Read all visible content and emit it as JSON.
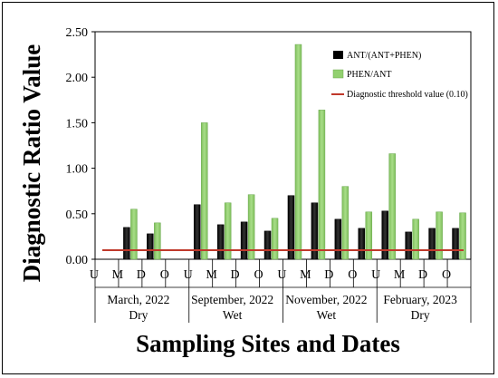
{
  "chart_data": {
    "type": "bar",
    "xlabel": "Sampling Sites and Dates",
    "ylabel": "Diagnostic Ratio Value",
    "ylim": [
      0,
      2.5
    ],
    "yticks": [
      "0.00",
      "0.50",
      "1.00",
      "1.50",
      "2.00",
      "2.50"
    ],
    "grid": false,
    "legend_position": "top-right",
    "categories": [
      "U",
      "M",
      "D",
      "O",
      "U",
      "M",
      "D",
      "O",
      "U",
      "M",
      "D",
      "O",
      "U",
      "M",
      "D",
      "O"
    ],
    "groups": [
      {
        "date": "March, 2022",
        "season": "Dry"
      },
      {
        "date": "September, 2022",
        "season": "Wet"
      },
      {
        "date": "November, 2022",
        "season": "Wet"
      },
      {
        "date": "February, 2023",
        "season": "Dry"
      }
    ],
    "series": [
      {
        "name": "ANT/(ANT+PHEN)",
        "color": "#000000",
        "values": [
          0,
          0.35,
          0.28,
          0,
          0.6,
          0.38,
          0.41,
          0.31,
          0.7,
          0.62,
          0.44,
          0.34,
          0.53,
          0.3,
          0.34,
          0.34
        ]
      },
      {
        "name": "PHEN/ANT",
        "color": "#92d06f",
        "values": [
          0,
          0.55,
          0.4,
          0,
          1.5,
          0.62,
          0.71,
          0.45,
          2.36,
          1.64,
          0.8,
          0.52,
          1.16,
          0.44,
          0.52,
          0.51
        ]
      }
    ],
    "threshold": {
      "name": "Diagnostic threshold value (0.10)",
      "value": 0.1,
      "color": "#c0392b"
    }
  }
}
